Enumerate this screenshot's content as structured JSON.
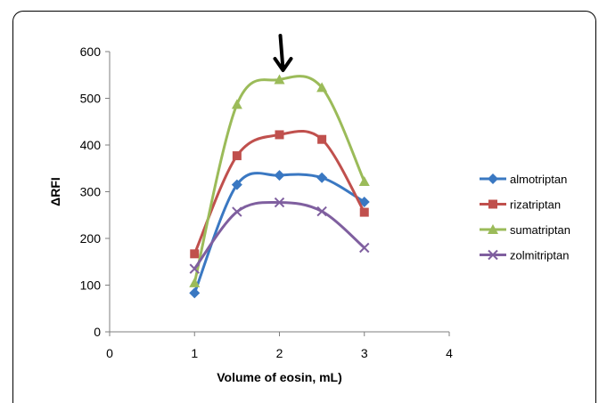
{
  "chart_data": {
    "type": "line",
    "title": "",
    "xlabel": "Volume of eosin, mL)",
    "ylabel": "ΔRFI",
    "xlim": [
      0,
      4
    ],
    "ylim": [
      0,
      600
    ],
    "xticks": [
      "0",
      "1",
      "2",
      "3",
      "4"
    ],
    "yticks": [
      "0",
      "100",
      "200",
      "300",
      "400",
      "500",
      "600"
    ],
    "grid": false,
    "legend_position": "right",
    "annotation": "arrow pointing down at x = 2",
    "x": [
      1,
      1.5,
      2,
      2.5,
      3
    ],
    "series": [
      {
        "name": "almotriptan",
        "color": "#3A78C2",
        "marker": "diamond",
        "values": [
          83,
          315,
          335,
          330,
          278
        ]
      },
      {
        "name": "rizatriptan",
        "color": "#C0504D",
        "marker": "square",
        "values": [
          167,
          377,
          422,
          412,
          256
        ]
      },
      {
        "name": "sumatriptan",
        "color": "#9BBB59",
        "marker": "triangle",
        "values": [
          105,
          487,
          540,
          523,
          322
        ]
      },
      {
        "name": "zolmitriptan",
        "color": "#7F5F9F",
        "marker": "x",
        "values": [
          135,
          257,
          277,
          258,
          180
        ]
      }
    ]
  }
}
